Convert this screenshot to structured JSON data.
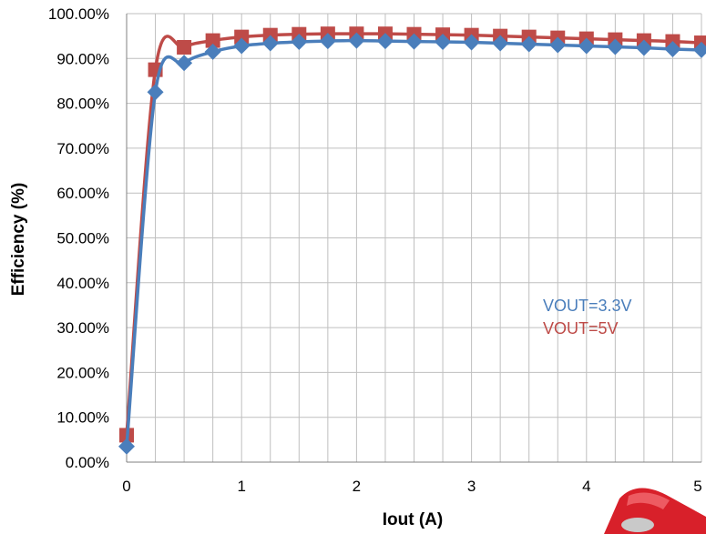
{
  "chart_data": {
    "type": "line",
    "title": "",
    "xlabel": "Iout (A)",
    "ylabel": "Efficiency (%)",
    "xlim": [
      0,
      5
    ],
    "ylim": [
      0,
      100
    ],
    "x_ticks": [
      0,
      1,
      2,
      3,
      4,
      5
    ],
    "y_ticks": [
      "0.00%",
      "10.00%",
      "20.00%",
      "30.00%",
      "40.00%",
      "50.00%",
      "60.00%",
      "70.00%",
      "80.00%",
      "90.00%",
      "100.00%"
    ],
    "grid": true,
    "legend_placement": "inside-right",
    "x": [
      0,
      0.25,
      0.5,
      0.75,
      1,
      1.25,
      1.5,
      1.75,
      2,
      2.25,
      2.5,
      2.75,
      3,
      3.25,
      3.5,
      3.75,
      4,
      4.25,
      4.5,
      4.75,
      5
    ],
    "series": [
      {
        "name": "VOUT=3.3V",
        "color": "#4a7ebb",
        "marker": "diamond",
        "values": [
          3.5,
          82.5,
          89.0,
          91.5,
          92.8,
          93.4,
          93.7,
          93.9,
          94.0,
          93.9,
          93.8,
          93.7,
          93.6,
          93.4,
          93.2,
          93.0,
          92.8,
          92.6,
          92.4,
          92.1,
          91.9
        ]
      },
      {
        "name": "VOUT=5V",
        "color": "#be4b48",
        "marker": "square",
        "values": [
          6.0,
          87.5,
          92.5,
          94.0,
          94.8,
          95.2,
          95.4,
          95.5,
          95.5,
          95.5,
          95.4,
          95.3,
          95.2,
          95.0,
          94.8,
          94.6,
          94.4,
          94.2,
          94.0,
          93.8,
          93.5
        ]
      }
    ]
  }
}
